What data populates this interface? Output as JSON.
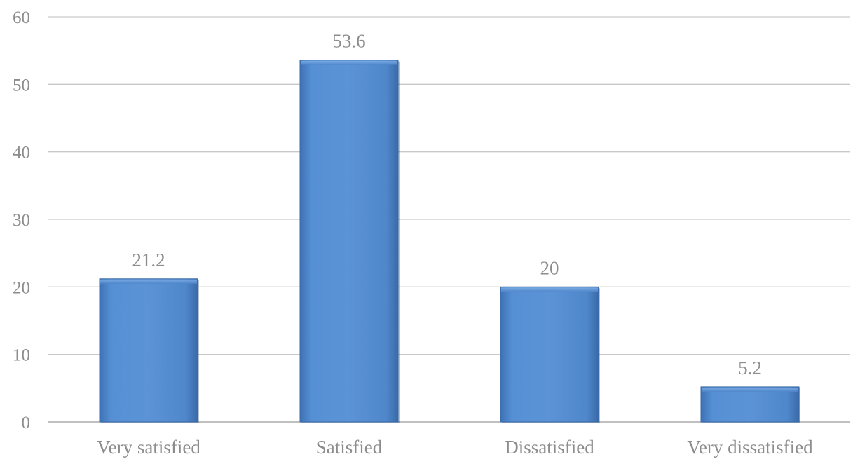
{
  "chart_data": {
    "type": "bar",
    "categories": [
      "Very satisfied",
      "Satisfied",
      "Dissatisfied",
      "Very dissatisfied"
    ],
    "values": [
      21.2,
      53.6,
      20,
      5.2
    ],
    "data_labels": [
      "21.2",
      "53.6",
      "20",
      "5.2"
    ],
    "title": "",
    "xlabel": "",
    "ylabel": "",
    "ylim": [
      0,
      60
    ],
    "yticks": [
      0,
      10,
      20,
      30,
      40,
      50,
      60
    ],
    "grid": true,
    "legend": "none",
    "bar_color": "#4f86c9"
  }
}
